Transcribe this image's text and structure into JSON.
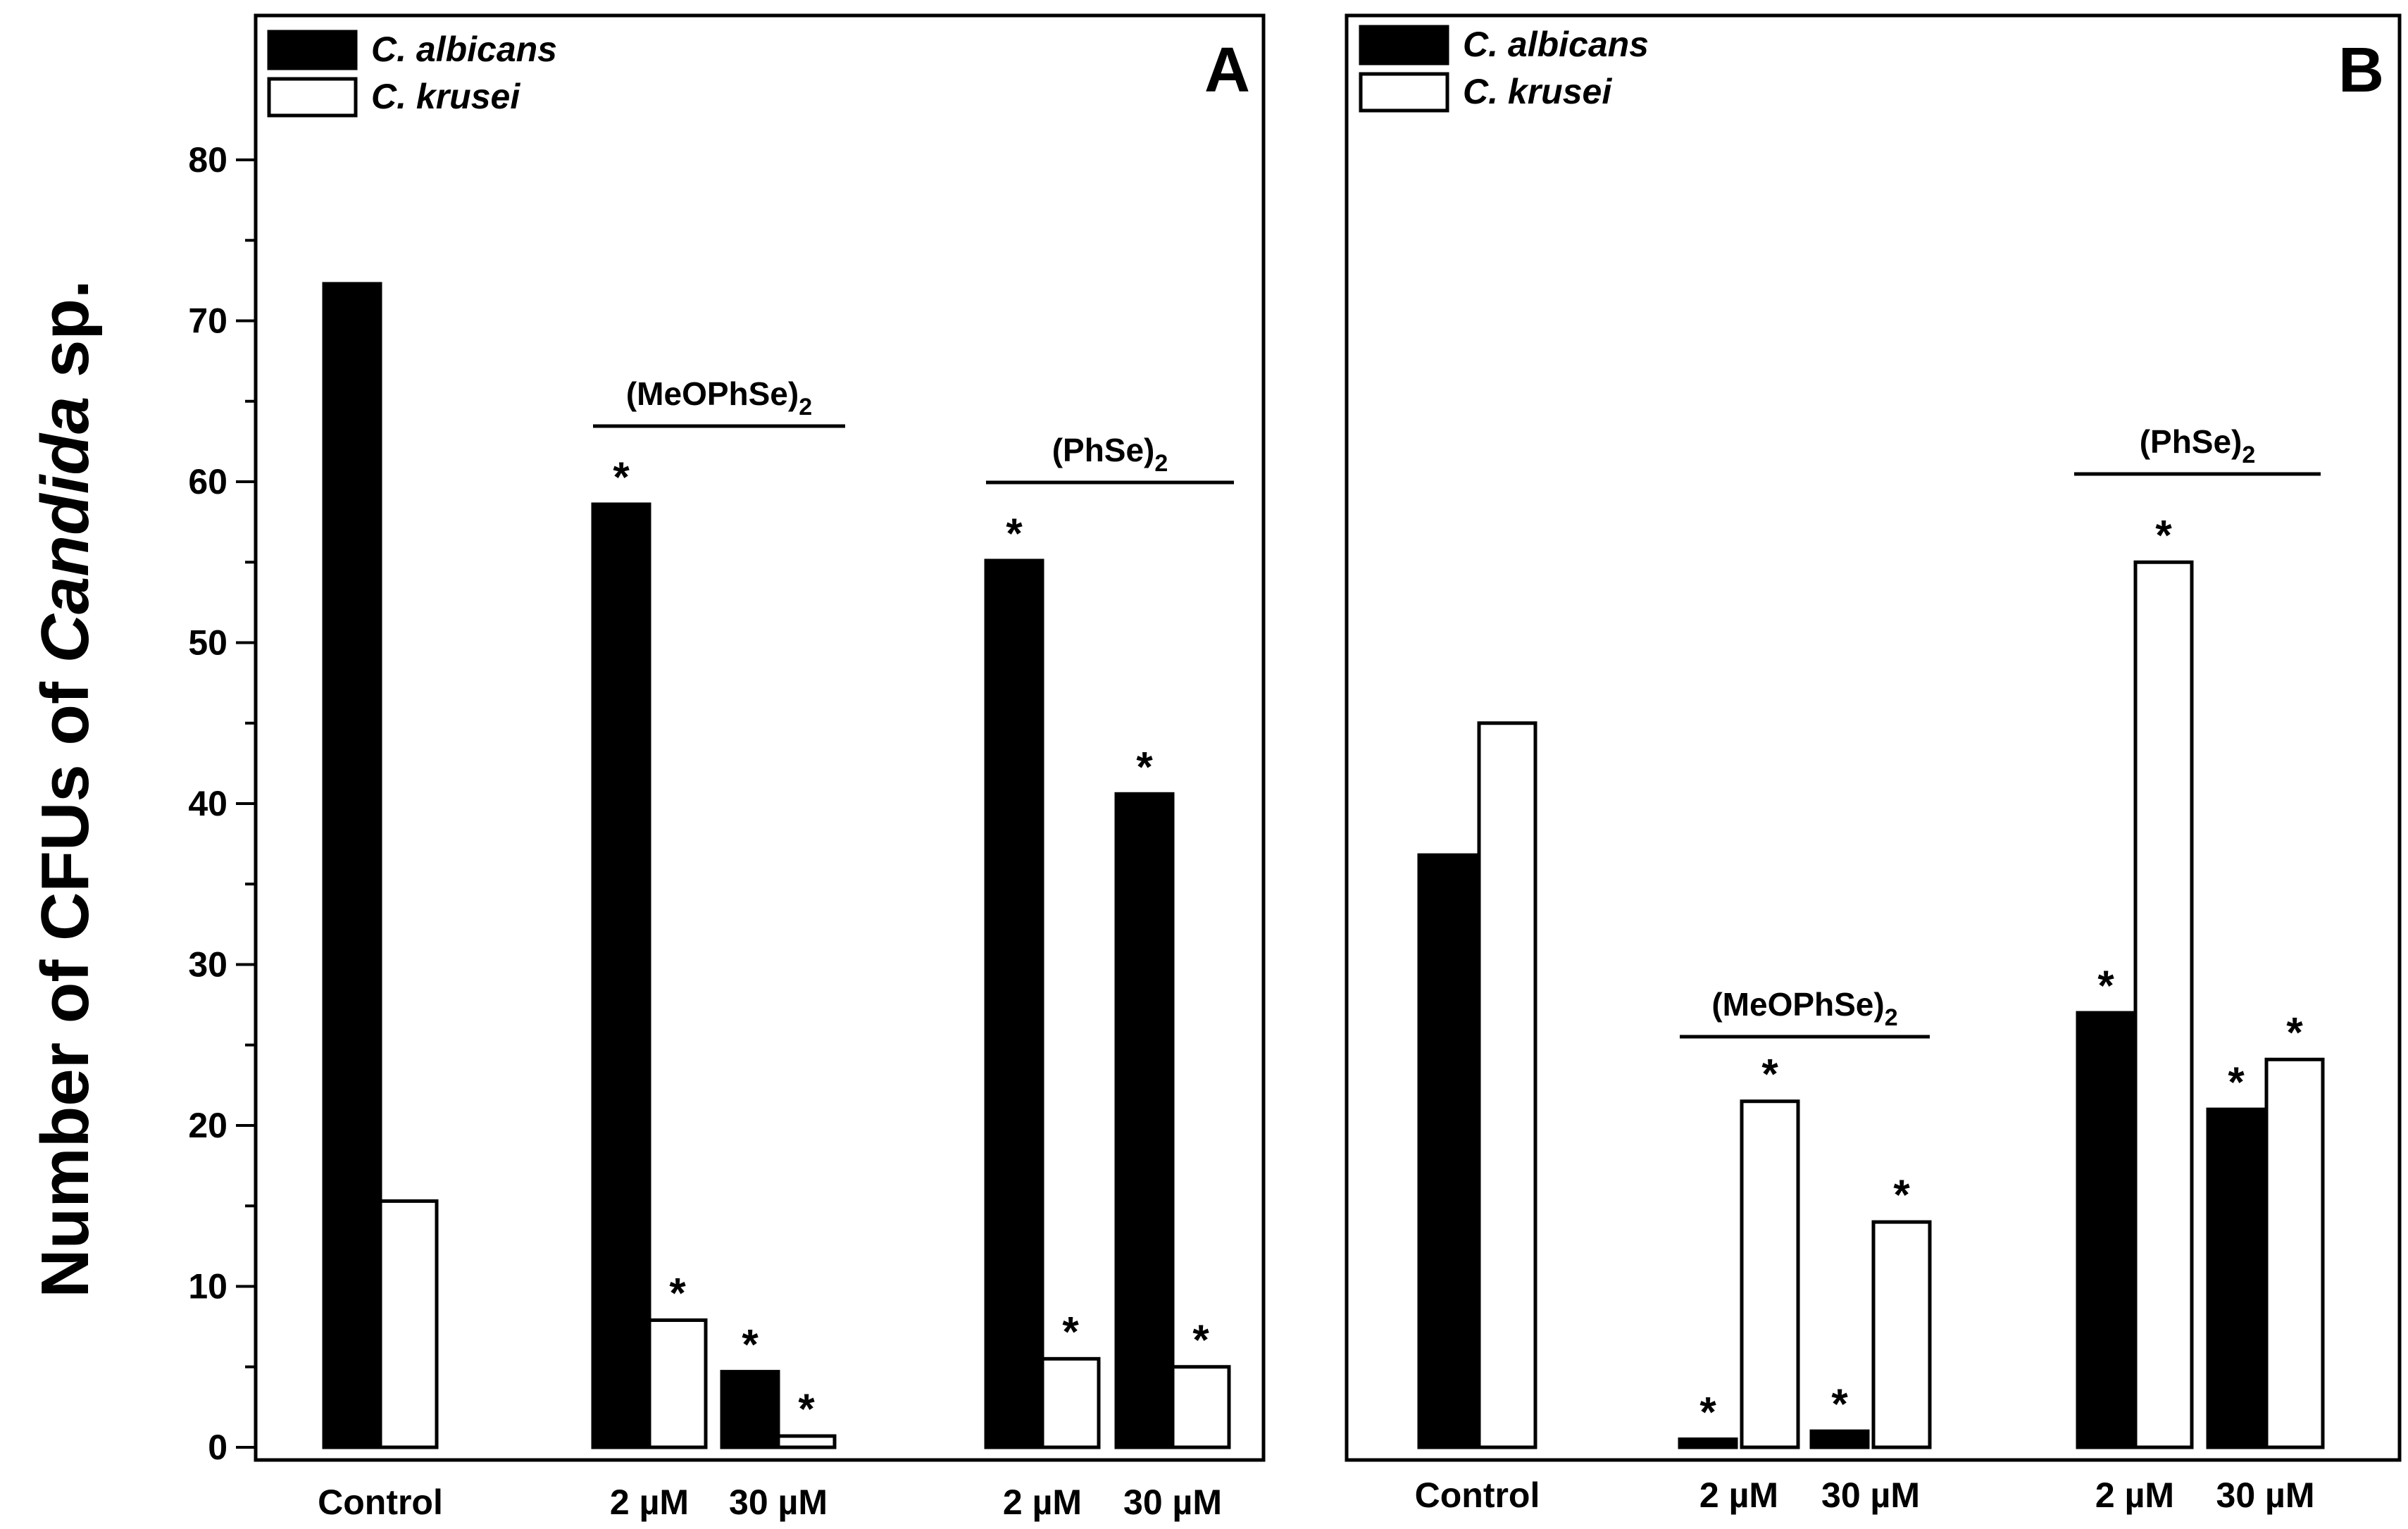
{
  "chart_data": [
    {
      "panel": "A",
      "type": "bar",
      "ylabel_parts": [
        "Number of CFUs of ",
        "Candida",
        " sp."
      ],
      "ylim": [
        0,
        85
      ],
      "yticks": [
        0,
        10,
        20,
        30,
        40,
        50,
        60,
        70,
        80
      ],
      "legend": [
        {
          "name": "C. albicans",
          "style": "filled"
        },
        {
          "name": "C. krusei",
          "style": "open"
        }
      ],
      "categories": [
        "Control",
        "2 µM",
        "30 µM",
        "2 µM",
        "30 µM"
      ],
      "series": [
        {
          "name": "C. albicans",
          "values": [
            72.3,
            58.6,
            4.7,
            55.1,
            40.6
          ],
          "significant": [
            false,
            true,
            true,
            true,
            true
          ]
        },
        {
          "name": "C. krusei",
          "values": [
            15.3,
            7.9,
            0.7,
            5.5,
            5.0
          ],
          "significant": [
            false,
            true,
            true,
            true,
            true
          ]
        }
      ],
      "groups": [
        {
          "base": "(MeOPhSe)",
          "sub": "2",
          "categories": [
            1,
            2
          ]
        },
        {
          "base": "(PhSe)",
          "sub": "2",
          "categories": [
            3,
            4
          ]
        }
      ],
      "significance_mark": "*"
    },
    {
      "panel": "B",
      "type": "bar",
      "ylim": [
        0,
        85
      ],
      "legend": [
        {
          "name": "C. albicans",
          "style": "filled"
        },
        {
          "name": "C. krusei",
          "style": "open"
        }
      ],
      "categories": [
        "Control",
        "2 µM",
        "30 µM",
        "2 µM",
        "30 µM"
      ],
      "series": [
        {
          "name": "C. albicans",
          "values": [
            36.8,
            0.5,
            1.0,
            27.0,
            21.0
          ],
          "significant": [
            false,
            true,
            true,
            true,
            true
          ]
        },
        {
          "name": "C. krusei",
          "values": [
            45.0,
            21.5,
            14.0,
            55.0,
            24.1
          ],
          "significant": [
            false,
            true,
            true,
            true,
            true
          ]
        }
      ],
      "groups": [
        {
          "base": "(MeOPhSe)",
          "sub": "2",
          "categories": [
            1,
            2
          ]
        },
        {
          "base": "(PhSe)",
          "sub": "2",
          "categories": [
            3,
            4
          ]
        }
      ],
      "significance_mark": "*"
    }
  ]
}
